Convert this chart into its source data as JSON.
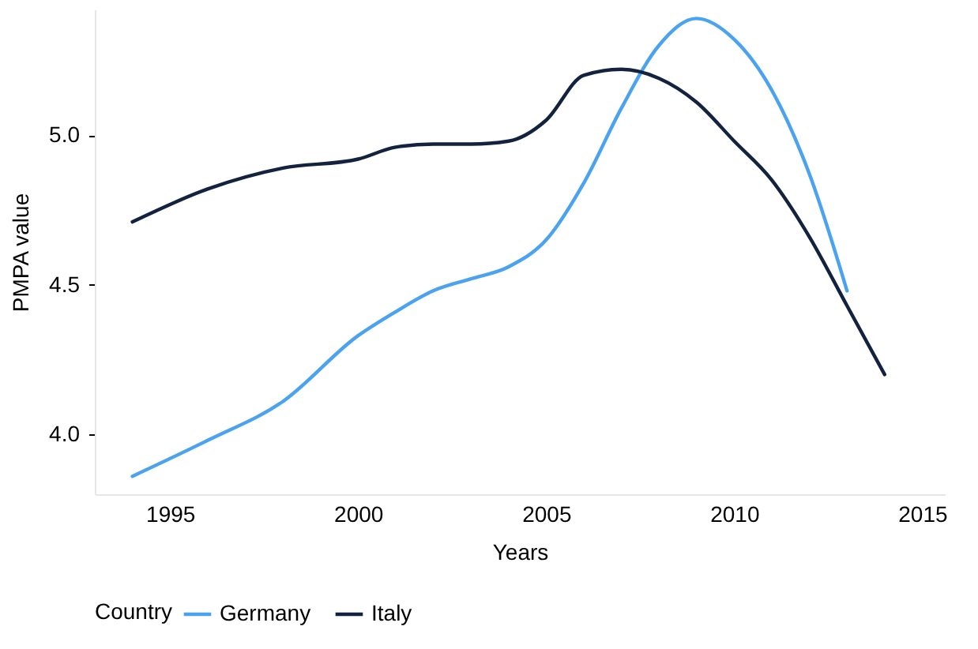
{
  "chart_data": {
    "type": "line",
    "xlabel": "Years",
    "ylabel": "PMPA value",
    "legend_title": "Country",
    "legend": "bottom",
    "x": [
      1994,
      1996,
      1998,
      2000,
      2001,
      2002,
      2003,
      2004,
      2005,
      2006,
      2007,
      2008,
      2009,
      2010,
      2011,
      2012,
      2013,
      2014
    ],
    "series": [
      {
        "name": "Germany",
        "color": "#4ba3f0",
        "values": [
          3.86,
          3.98,
          4.11,
          4.33,
          4.41,
          4.48,
          4.52,
          4.56,
          4.65,
          4.84,
          5.09,
          5.3,
          5.39,
          5.32,
          5.15,
          4.87,
          4.48,
          null
        ]
      },
      {
        "name": "Italy",
        "color": "#13233f",
        "values": [
          4.71,
          4.82,
          4.89,
          4.92,
          4.96,
          4.97,
          4.97,
          4.98,
          5.05,
          5.2,
          5.22,
          5.19,
          5.11,
          4.98,
          4.85,
          4.66,
          4.43,
          4.2
        ]
      }
    ],
    "xlim": [
      1993,
      2015.6
    ],
    "ylim": [
      3.8,
      5.42
    ],
    "xticks": [
      1995,
      2000,
      2005,
      2010,
      2015
    ],
    "yticks": [
      {
        "value": 4,
        "label": "4.0"
      },
      {
        "value": 4.5,
        "label": "4.5"
      },
      {
        "value": 5,
        "label": "5.0"
      }
    ]
  }
}
